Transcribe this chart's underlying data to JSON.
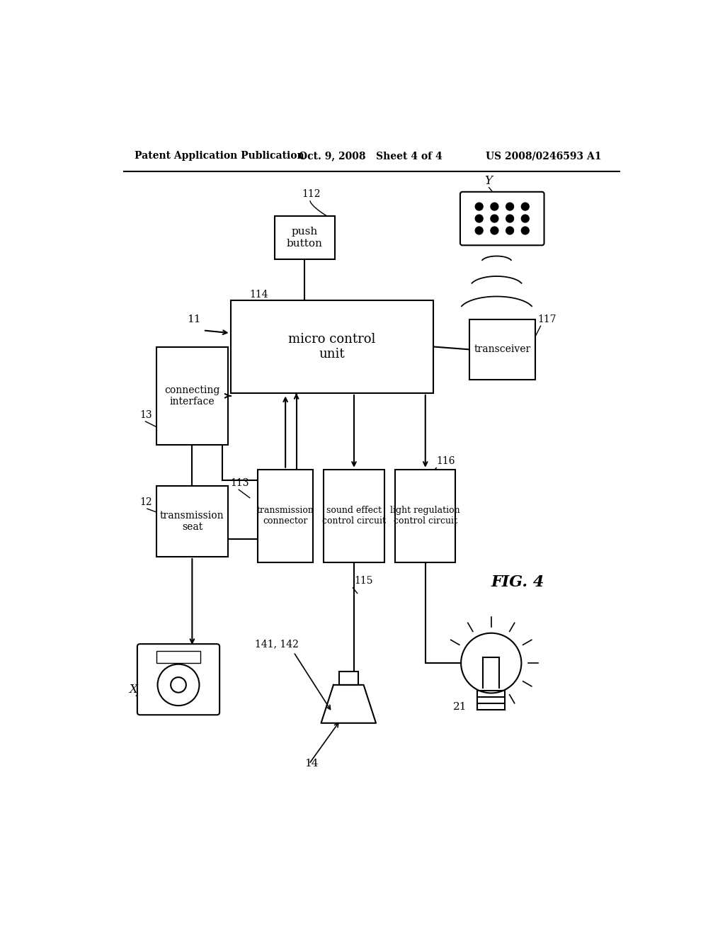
{
  "title_left": "Patent Application Publication",
  "title_mid": "Oct. 9, 2008   Sheet 4 of 4",
  "title_right": "US 2008/0246593 A1",
  "fig_label": "FIG. 4",
  "background_color": "#ffffff"
}
